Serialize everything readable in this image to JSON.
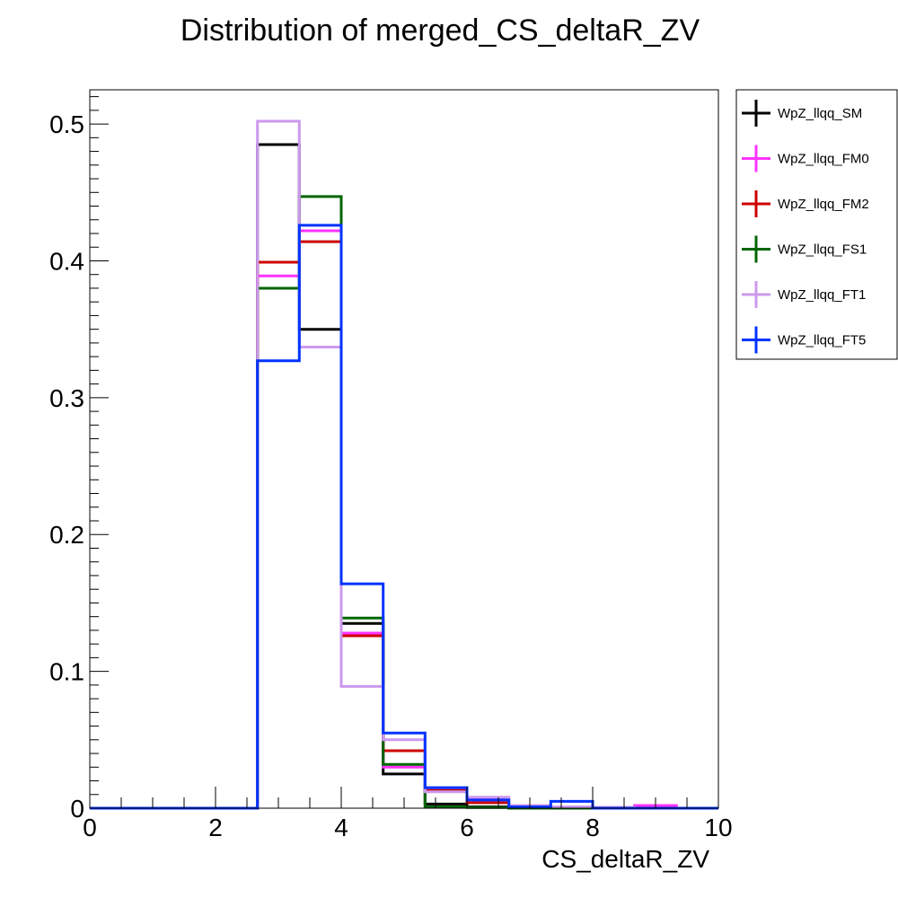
{
  "chart_data": {
    "type": "histogram",
    "title": "Distribution of merged_CS_deltaR_ZV",
    "xlabel": "CS_deltaR_ZV",
    "ylabel": "",
    "xlim": [
      0,
      10
    ],
    "ylim": [
      0,
      0.525
    ],
    "x_ticks": [
      "0",
      "2",
      "4",
      "6",
      "8",
      "10"
    ],
    "y_ticks": [
      "0",
      "0.1",
      "0.2",
      "0.3",
      "0.4",
      "0.5"
    ],
    "bin_edges": [
      0,
      0.667,
      1.333,
      2.0,
      2.667,
      3.333,
      4.0,
      4.667,
      5.333,
      6.0,
      6.667,
      7.333,
      8.0,
      8.667,
      9.333,
      10.0
    ],
    "legend_position": "right, outside plot",
    "series": [
      {
        "name": "WpZ_llqq_SM",
        "color": "#000000",
        "values": [
          0,
          0,
          0,
          0,
          0.485,
          0.35,
          0.135,
          0.025,
          0.003,
          0.001,
          0.0005,
          0.0005,
          0,
          0,
          0
        ]
      },
      {
        "name": "WpZ_llqq_FM0",
        "color": "#ff33ff",
        "values": [
          0,
          0,
          0,
          0,
          0.389,
          0.422,
          0.128,
          0.03,
          0.013,
          0.007,
          0.002,
          0.001,
          0.0005,
          0.002,
          0
        ]
      },
      {
        "name": "WpZ_llqq_FM2",
        "color": "#cc0000",
        "values": [
          0,
          0,
          0,
          0,
          0.399,
          0.414,
          0.126,
          0.042,
          0.013,
          0.004,
          0.001,
          0.0005,
          0,
          0,
          0
        ]
      },
      {
        "name": "WpZ_llqq_FS1",
        "color": "#006600",
        "values": [
          0,
          0,
          0,
          0,
          0.38,
          0.447,
          0.139,
          0.032,
          0.001,
          0.0005,
          0,
          0,
          0,
          0,
          0
        ]
      },
      {
        "name": "WpZ_llqq_FT1",
        "color": "#cc99ee",
        "values": [
          0,
          0,
          0,
          0,
          0.502,
          0.337,
          0.089,
          0.05,
          0.012,
          0.008,
          0.002,
          0.001,
          0.0005,
          0,
          0
        ]
      },
      {
        "name": "WpZ_llqq_FT5",
        "color": "#0033ff",
        "values": [
          0,
          0,
          0,
          0,
          0.327,
          0.426,
          0.164,
          0.055,
          0.015,
          0.006,
          0.001,
          0.005,
          0,
          0,
          0
        ]
      }
    ]
  }
}
